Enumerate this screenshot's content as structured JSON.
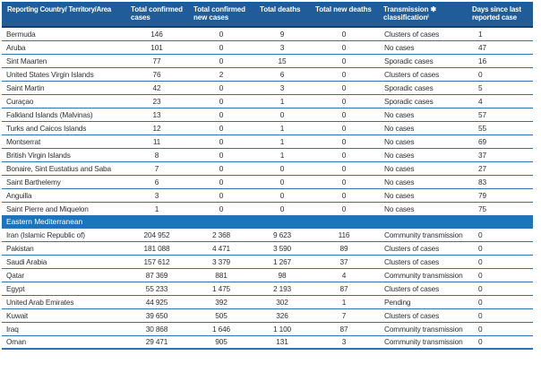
{
  "colors": {
    "header_bg": "#1f5c99",
    "header_border": "#1a3e66",
    "section_bg": "#1b75bc",
    "row_border": "#2e74b5",
    "text": "#303030"
  },
  "table": {
    "columns": [
      "Reporting Country/ Territory/Area",
      "Total confirmed cases",
      "Total confirmed new cases",
      "Total deaths",
      "Total new deaths",
      "Transmission ✱ classificationⁱ",
      "Days since last reported case"
    ],
    "sections": [
      {
        "header": null,
        "rows": [
          [
            "Bermuda",
            "146",
            "0",
            "9",
            "0",
            "Clusters of cases",
            "1"
          ],
          [
            "Aruba",
            "101",
            "0",
            "3",
            "0",
            "No cases",
            "47"
          ],
          [
            "Sint Maarten",
            "77",
            "0",
            "15",
            "0",
            "Sporadic cases",
            "16"
          ],
          [
            "United States Virgin Islands",
            "76",
            "2",
            "6",
            "0",
            "Clusters of cases",
            "0"
          ],
          [
            "Saint Martin",
            "42",
            "0",
            "3",
            "0",
            "Sporadic cases",
            "5"
          ],
          [
            "Curaçao",
            "23",
            "0",
            "1",
            "0",
            "Sporadic cases",
            "4"
          ],
          [
            "Falkland Islands (Malvinas)",
            "13",
            "0",
            "0",
            "0",
            "No cases",
            "57"
          ],
          [
            "Turks and Caicos Islands",
            "12",
            "0",
            "1",
            "0",
            "No cases",
            "55"
          ],
          [
            "Montserrat",
            "11",
            "0",
            "1",
            "0",
            "No cases",
            "69"
          ],
          [
            "British Virgin Islands",
            "8",
            "0",
            "1",
            "0",
            "No cases",
            "37"
          ],
          [
            "Bonaire, Sint Eustatius and Saba",
            "7",
            "0",
            "0",
            "0",
            "No cases",
            "27"
          ],
          [
            "Saint Barthelemy",
            "6",
            "0",
            "0",
            "0",
            "No cases",
            "83"
          ],
          [
            "Anguilla",
            "3",
            "0",
            "0",
            "0",
            "No cases",
            "79"
          ],
          [
            "Saint Pierre and Miquelon",
            "1",
            "0",
            "0",
            "0",
            "No cases",
            "75"
          ]
        ]
      },
      {
        "header": "Eastern Mediterranean",
        "rows": [
          [
            "Iran (Islamic Republic of)",
            "204 952",
            "2 368",
            "9 623",
            "116",
            "Community transmission",
            "0"
          ],
          [
            "Pakistan",
            "181 088",
            "4 471",
            "3 590",
            "89",
            "Clusters of cases",
            "0"
          ],
          [
            "Saudi Arabia",
            "157 612",
            "3 379",
            "1 267",
            "37",
            "Clusters of cases",
            "0"
          ],
          [
            "Qatar",
            "87 369",
            "881",
            "98",
            "4",
            "Community transmission",
            "0"
          ],
          [
            "Egypt",
            "55 233",
            "1 475",
            "2 193",
            "87",
            "Clusters of cases",
            "0"
          ],
          [
            "United Arab Emirates",
            "44 925",
            "392",
            "302",
            "1",
            "Pending",
            "0"
          ],
          [
            "Kuwait",
            "39 650",
            "505",
            "326",
            "7",
            "Clusters of cases",
            "0"
          ],
          [
            "Iraq",
            "30 868",
            "1 646",
            "1 100",
            "87",
            "Community transmission",
            "0"
          ],
          [
            "Oman",
            "29 471",
            "905",
            "131",
            "3",
            "Community transmission",
            "0"
          ]
        ]
      }
    ]
  }
}
